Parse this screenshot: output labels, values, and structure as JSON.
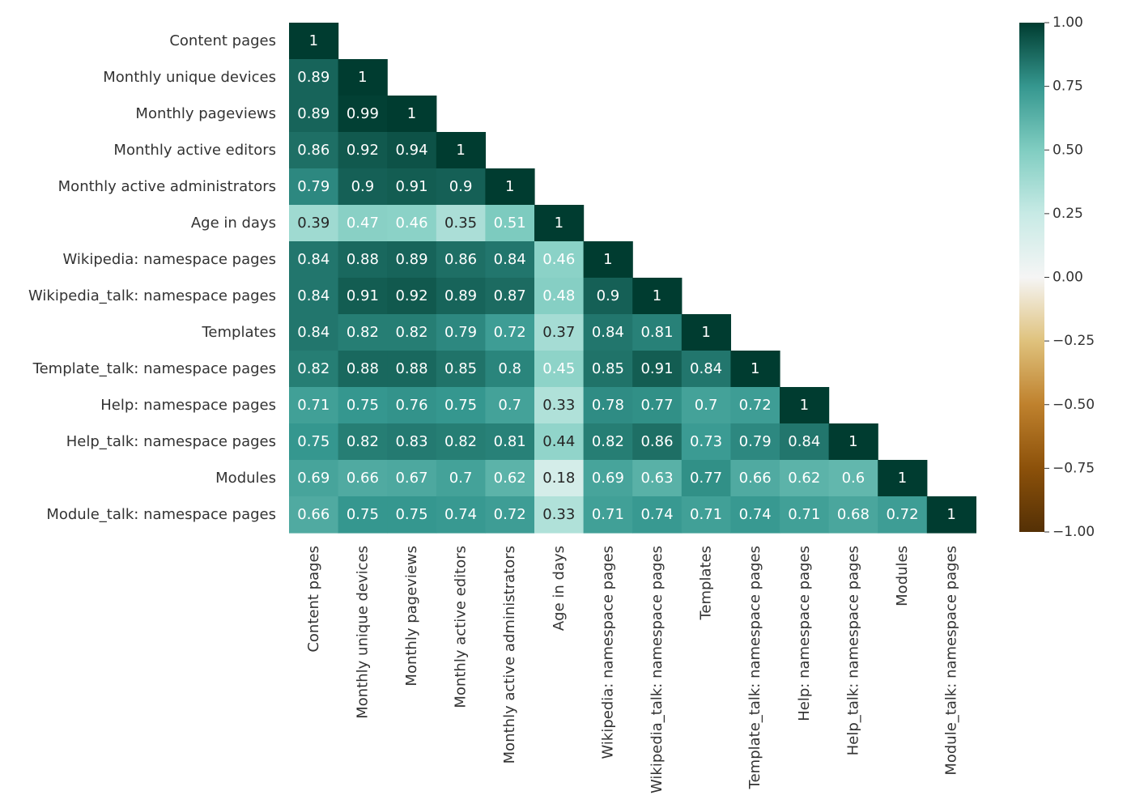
{
  "chart_data": {
    "type": "heatmap",
    "title": "",
    "xlabel": "",
    "ylabel": "",
    "mask": "upper-triangle",
    "labels": [
      "Content pages",
      "Monthly unique devices",
      "Monthly pageviews",
      "Monthly active editors",
      "Monthly active administrators",
      "Age in days",
      "Wikipedia: namespace pages",
      "Wikipedia_talk: namespace pages",
      "Templates",
      "Template_talk: namespace pages",
      "Help: namespace pages",
      "Help_talk: namespace pages",
      "Modules",
      "Module_talk: namespace pages"
    ],
    "values": [
      [
        1
      ],
      [
        0.89,
        1
      ],
      [
        0.89,
        0.99,
        1
      ],
      [
        0.86,
        0.92,
        0.94,
        1
      ],
      [
        0.79,
        0.9,
        0.91,
        0.9,
        1
      ],
      [
        0.39,
        0.47,
        0.46,
        0.35,
        0.51,
        1
      ],
      [
        0.84,
        0.88,
        0.89,
        0.86,
        0.84,
        0.46,
        1
      ],
      [
        0.84,
        0.91,
        0.92,
        0.89,
        0.87,
        0.48,
        0.9,
        1
      ],
      [
        0.84,
        0.82,
        0.82,
        0.79,
        0.72,
        0.37,
        0.84,
        0.81,
        1
      ],
      [
        0.82,
        0.88,
        0.88,
        0.85,
        0.8,
        0.45,
        0.85,
        0.91,
        0.84,
        1
      ],
      [
        0.71,
        0.75,
        0.76,
        0.75,
        0.7,
        0.33,
        0.78,
        0.77,
        0.7,
        0.72,
        1
      ],
      [
        0.75,
        0.82,
        0.83,
        0.82,
        0.81,
        0.44,
        0.82,
        0.86,
        0.73,
        0.79,
        0.84,
        1
      ],
      [
        0.69,
        0.66,
        0.67,
        0.7,
        0.62,
        0.18,
        0.69,
        0.63,
        0.77,
        0.66,
        0.62,
        0.6,
        1
      ],
      [
        0.66,
        0.75,
        0.75,
        0.74,
        0.72,
        0.33,
        0.71,
        0.74,
        0.71,
        0.74,
        0.71,
        0.68,
        0.72,
        1
      ]
    ],
    "value_labels": [
      [
        "1"
      ],
      [
        "0.89",
        "1"
      ],
      [
        "0.89",
        "0.99",
        "1"
      ],
      [
        "0.86",
        "0.92",
        "0.94",
        "1"
      ],
      [
        "0.79",
        "0.9",
        "0.91",
        "0.9",
        "1"
      ],
      [
        "0.39",
        "0.47",
        "0.46",
        "0.35",
        "0.51",
        "1"
      ],
      [
        "0.84",
        "0.88",
        "0.89",
        "0.86",
        "0.84",
        "0.46",
        "1"
      ],
      [
        "0.84",
        "0.91",
        "0.92",
        "0.89",
        "0.87",
        "0.48",
        "0.9",
        "1"
      ],
      [
        "0.84",
        "0.82",
        "0.82",
        "0.79",
        "0.72",
        "0.37",
        "0.84",
        "0.81",
        "1"
      ],
      [
        "0.82",
        "0.88",
        "0.88",
        "0.85",
        "0.8",
        "0.45",
        "0.85",
        "0.91",
        "0.84",
        "1"
      ],
      [
        "0.71",
        "0.75",
        "0.76",
        "0.75",
        "0.7",
        "0.33",
        "0.78",
        "0.77",
        "0.7",
        "0.72",
        "1"
      ],
      [
        "0.75",
        "0.82",
        "0.83",
        "0.82",
        "0.81",
        "0.44",
        "0.82",
        "0.86",
        "0.73",
        "0.79",
        "0.84",
        "1"
      ],
      [
        "0.69",
        "0.66",
        "0.67",
        "0.7",
        "0.62",
        "0.18",
        "0.69",
        "0.63",
        "0.77",
        "0.66",
        "0.62",
        "0.6",
        "1"
      ],
      [
        "0.66",
        "0.75",
        "0.75",
        "0.74",
        "0.72",
        "0.33",
        "0.71",
        "0.74",
        "0.71",
        "0.74",
        "0.71",
        "0.68",
        "0.72",
        "1"
      ]
    ],
    "colorbar": {
      "range": [
        -1.0,
        1.0
      ],
      "ticks": [
        1.0,
        0.75,
        0.5,
        0.25,
        0.0,
        -0.25,
        -0.5,
        -0.75,
        -1.0
      ],
      "tick_labels": [
        "1.00",
        "0.75",
        "0.50",
        "0.25",
        "0.00",
        "−0.25",
        "−0.50",
        "−0.75",
        "−1.00"
      ],
      "colormap": "BrBG",
      "color_stops": [
        {
          "value": -1.0,
          "color": "#543005"
        },
        {
          "value": -0.75,
          "color": "#8c510a"
        },
        {
          "value": -0.5,
          "color": "#bf812d"
        },
        {
          "value": -0.25,
          "color": "#dfc27d"
        },
        {
          "value": 0.0,
          "color": "#f5f5f5"
        },
        {
          "value": 0.25,
          "color": "#c7eae5"
        },
        {
          "value": 0.5,
          "color": "#80cdc1"
        },
        {
          "value": 0.75,
          "color": "#35978f"
        },
        {
          "value": 1.0,
          "color": "#003c30"
        }
      ]
    },
    "text_colors": {
      "dark": "#262626",
      "light": "#ffffff"
    },
    "grid": false
  }
}
